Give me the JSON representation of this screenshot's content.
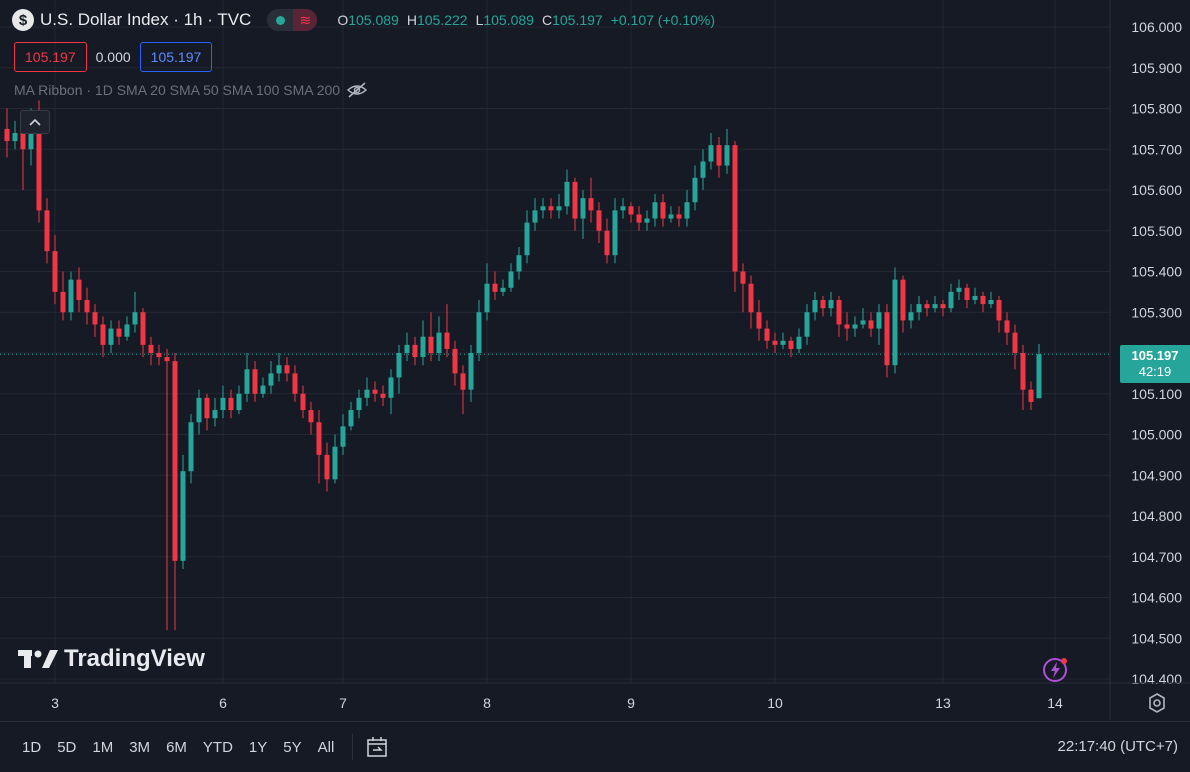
{
  "legend": {
    "symbol_icon": "dollar-sign-icon",
    "symbol_glyph": "$",
    "title": "U.S. Dollar Index · 1h · TVC",
    "ohlc": {
      "o_label": "O",
      "o": "105.089",
      "h_label": "H",
      "h": "105.222",
      "l_label": "L",
      "l": "105.089",
      "c_label": "C",
      "c": "105.197",
      "change": "+0.107 (+0.10%)"
    }
  },
  "price_boxes": {
    "sell": "105.197",
    "spread": "0.000",
    "buy": "105.197"
  },
  "indicator": {
    "label": "MA Ribbon · 1D SMA 20 SMA 50 SMA 100 SMA 200"
  },
  "watermark": {
    "text": "TradingView"
  },
  "last_price": {
    "price": "105.197",
    "countdown": "42:19"
  },
  "bottom_bar": {
    "ranges": [
      "1D",
      "5D",
      "1M",
      "3M",
      "6M",
      "YTD",
      "1Y",
      "5Y",
      "All"
    ],
    "clock": "22:17:40 (UTC+7)"
  },
  "colors": {
    "up": "#26a69a",
    "down": "#f23645",
    "background": "#161a25",
    "grid": "#232733"
  },
  "chart_data": {
    "type": "candlestick",
    "y_ticks": [
      "106.000",
      "105.900",
      "105.800",
      "105.700",
      "105.600",
      "105.500",
      "105.400",
      "105.300",
      "105.200",
      "105.100",
      "105.000",
      "104.900",
      "104.800",
      "104.700",
      "104.600",
      "104.500",
      "104.400"
    ],
    "ylim": [
      104.36,
      106.06
    ],
    "x_ticks": [
      {
        "label": "3",
        "index": 6
      },
      {
        "label": "6",
        "index": 27
      },
      {
        "label": "7",
        "index": 42
      },
      {
        "label": "8",
        "index": 60
      },
      {
        "label": "9",
        "index": 78
      },
      {
        "label": "10",
        "index": 96
      },
      {
        "label": "13",
        "index": 117
      },
      {
        "label": "14",
        "index": 131
      }
    ],
    "last_price": 105.197,
    "candles": [
      [
        105.75,
        105.72,
        105.8,
        105.68
      ],
      [
        105.72,
        105.74,
        105.77,
        105.7
      ],
      [
        105.74,
        105.7,
        105.76,
        105.6
      ],
      [
        105.7,
        105.76,
        105.8,
        105.66
      ],
      [
        105.76,
        105.55,
        105.82,
        105.52
      ],
      [
        105.55,
        105.45,
        105.58,
        105.42
      ],
      [
        105.45,
        105.35,
        105.49,
        105.32
      ],
      [
        105.35,
        105.3,
        105.4,
        105.28
      ],
      [
        105.3,
        105.38,
        105.4,
        105.28
      ],
      [
        105.38,
        105.33,
        105.41,
        105.3
      ],
      [
        105.33,
        105.3,
        105.36,
        105.27
      ],
      [
        105.3,
        105.27,
        105.32,
        105.24
      ],
      [
        105.27,
        105.22,
        105.29,
        105.19
      ],
      [
        105.22,
        105.26,
        105.28,
        105.2
      ],
      [
        105.26,
        105.24,
        105.28,
        105.22
      ],
      [
        105.24,
        105.27,
        105.29,
        105.23
      ],
      [
        105.27,
        105.3,
        105.35,
        105.25
      ],
      [
        105.3,
        105.22,
        105.31,
        105.19
      ],
      [
        105.22,
        105.2,
        105.24,
        105.17
      ],
      [
        105.2,
        105.19,
        105.22,
        105.17
      ],
      [
        105.19,
        105.18,
        105.21,
        104.52
      ],
      [
        105.18,
        104.69,
        105.2,
        104.52
      ],
      [
        104.69,
        104.91,
        104.95,
        104.67
      ],
      [
        104.91,
        105.03,
        105.05,
        104.88
      ],
      [
        105.03,
        105.09,
        105.11,
        105.0
      ],
      [
        105.09,
        105.04,
        105.1,
        105.01
      ],
      [
        105.04,
        105.06,
        105.09,
        105.02
      ],
      [
        105.06,
        105.09,
        105.12,
        105.04
      ],
      [
        105.09,
        105.06,
        105.11,
        105.04
      ],
      [
        105.06,
        105.1,
        105.12,
        105.05
      ],
      [
        105.1,
        105.16,
        105.2,
        105.08
      ],
      [
        105.16,
        105.1,
        105.18,
        105.08
      ],
      [
        105.1,
        105.12,
        105.14,
        105.09
      ],
      [
        105.12,
        105.15,
        105.18,
        105.1
      ],
      [
        105.15,
        105.17,
        105.2,
        105.13
      ],
      [
        105.17,
        105.15,
        105.19,
        105.13
      ],
      [
        105.15,
        105.1,
        105.17,
        105.08
      ],
      [
        105.1,
        105.06,
        105.12,
        105.04
      ],
      [
        105.06,
        105.03,
        105.08,
        105.0
      ],
      [
        105.03,
        104.95,
        105.06,
        104.88
      ],
      [
        104.95,
        104.89,
        104.98,
        104.86
      ],
      [
        104.89,
        104.97,
        105.0,
        104.88
      ],
      [
        104.97,
        105.02,
        105.05,
        104.95
      ],
      [
        105.02,
        105.06,
        105.08,
        105.01
      ],
      [
        105.06,
        105.09,
        105.11,
        105.04
      ],
      [
        105.09,
        105.11,
        105.14,
        105.07
      ],
      [
        105.11,
        105.1,
        105.13,
        105.08
      ],
      [
        105.1,
        105.09,
        105.12,
        105.07
      ],
      [
        105.09,
        105.14,
        105.16,
        105.05
      ],
      [
        105.14,
        105.2,
        105.22,
        105.1
      ],
      [
        105.2,
        105.22,
        105.25,
        105.18
      ],
      [
        105.22,
        105.19,
        105.24,
        105.17
      ],
      [
        105.19,
        105.24,
        105.28,
        105.17
      ],
      [
        105.24,
        105.2,
        105.3,
        105.18
      ],
      [
        105.2,
        105.25,
        105.29,
        105.18
      ],
      [
        105.25,
        105.21,
        105.32,
        105.19
      ],
      [
        105.21,
        105.15,
        105.23,
        105.12
      ],
      [
        105.15,
        105.11,
        105.17,
        105.05
      ],
      [
        105.11,
        105.2,
        105.22,
        105.08
      ],
      [
        105.2,
        105.3,
        105.33,
        105.18
      ],
      [
        105.3,
        105.37,
        105.42,
        105.28
      ],
      [
        105.37,
        105.35,
        105.4,
        105.33
      ],
      [
        105.35,
        105.36,
        105.38,
        105.34
      ],
      [
        105.36,
        105.4,
        105.42,
        105.35
      ],
      [
        105.4,
        105.44,
        105.46,
        105.38
      ],
      [
        105.44,
        105.52,
        105.55,
        105.42
      ],
      [
        105.52,
        105.55,
        105.58,
        105.5
      ],
      [
        105.55,
        105.56,
        105.58,
        105.53
      ],
      [
        105.56,
        105.55,
        105.58,
        105.53
      ],
      [
        105.55,
        105.56,
        105.59,
        105.53
      ],
      [
        105.56,
        105.62,
        105.65,
        105.54
      ],
      [
        105.62,
        105.53,
        105.63,
        105.5
      ],
      [
        105.53,
        105.58,
        105.6,
        105.48
      ],
      [
        105.58,
        105.55,
        105.63,
        105.52
      ],
      [
        105.55,
        105.5,
        105.57,
        105.47
      ],
      [
        105.5,
        105.44,
        105.53,
        105.42
      ],
      [
        105.44,
        105.55,
        105.58,
        105.42
      ],
      [
        105.55,
        105.56,
        105.58,
        105.53
      ],
      [
        105.56,
        105.54,
        105.57,
        105.52
      ],
      [
        105.54,
        105.52,
        105.56,
        105.5
      ],
      [
        105.52,
        105.53,
        105.55,
        105.5
      ],
      [
        105.53,
        105.57,
        105.59,
        105.51
      ],
      [
        105.57,
        105.53,
        105.59,
        105.51
      ],
      [
        105.53,
        105.54,
        105.56,
        105.52
      ],
      [
        105.54,
        105.53,
        105.56,
        105.51
      ],
      [
        105.53,
        105.57,
        105.6,
        105.51
      ],
      [
        105.57,
        105.63,
        105.66,
        105.55
      ],
      [
        105.63,
        105.67,
        105.7,
        105.6
      ],
      [
        105.67,
        105.71,
        105.74,
        105.65
      ],
      [
        105.71,
        105.66,
        105.73,
        105.63
      ],
      [
        105.66,
        105.71,
        105.75,
        105.64
      ],
      [
        105.71,
        105.4,
        105.72,
        105.35
      ],
      [
        105.4,
        105.37,
        105.42,
        105.3
      ],
      [
        105.37,
        105.3,
        105.39,
        105.26
      ],
      [
        105.3,
        105.26,
        105.33,
        105.23
      ],
      [
        105.26,
        105.23,
        105.28,
        105.21
      ],
      [
        105.23,
        105.22,
        105.25,
        105.2
      ],
      [
        105.22,
        105.23,
        105.25,
        105.21
      ],
      [
        105.23,
        105.21,
        105.24,
        105.19
      ],
      [
        105.21,
        105.24,
        105.26,
        105.2
      ],
      [
        105.24,
        105.3,
        105.32,
        105.22
      ],
      [
        105.3,
        105.33,
        105.35,
        105.28
      ],
      [
        105.33,
        105.31,
        105.34,
        105.29
      ],
      [
        105.31,
        105.33,
        105.35,
        105.29
      ],
      [
        105.33,
        105.27,
        105.34,
        105.24
      ],
      [
        105.27,
        105.26,
        105.3,
        105.23
      ],
      [
        105.26,
        105.27,
        105.29,
        105.24
      ],
      [
        105.27,
        105.28,
        105.31,
        105.26
      ],
      [
        105.28,
        105.26,
        105.3,
        105.24
      ],
      [
        105.26,
        105.3,
        105.32,
        105.22
      ],
      [
        105.3,
        105.17,
        105.32,
        105.14
      ],
      [
        105.17,
        105.38,
        105.41,
        105.15
      ],
      [
        105.38,
        105.28,
        105.39,
        105.25
      ],
      [
        105.28,
        105.3,
        105.32,
        105.26
      ],
      [
        105.3,
        105.32,
        105.34,
        105.28
      ],
      [
        105.32,
        105.31,
        105.33,
        105.29
      ],
      [
        105.31,
        105.32,
        105.34,
        105.3
      ],
      [
        105.32,
        105.31,
        105.33,
        105.29
      ],
      [
        105.31,
        105.35,
        105.37,
        105.3
      ],
      [
        105.35,
        105.36,
        105.38,
        105.33
      ],
      [
        105.36,
        105.33,
        105.37,
        105.31
      ],
      [
        105.33,
        105.34,
        105.36,
        105.32
      ],
      [
        105.34,
        105.32,
        105.35,
        105.3
      ],
      [
        105.32,
        105.33,
        105.35,
        105.31
      ],
      [
        105.33,
        105.28,
        105.34,
        105.25
      ],
      [
        105.28,
        105.25,
        105.3,
        105.22
      ],
      [
        105.25,
        105.2,
        105.27,
        105.16
      ],
      [
        105.2,
        105.11,
        105.22,
        105.06
      ],
      [
        105.11,
        105.08,
        105.13,
        105.06
      ],
      [
        105.089,
        105.197,
        105.222,
        105.089
      ]
    ]
  }
}
